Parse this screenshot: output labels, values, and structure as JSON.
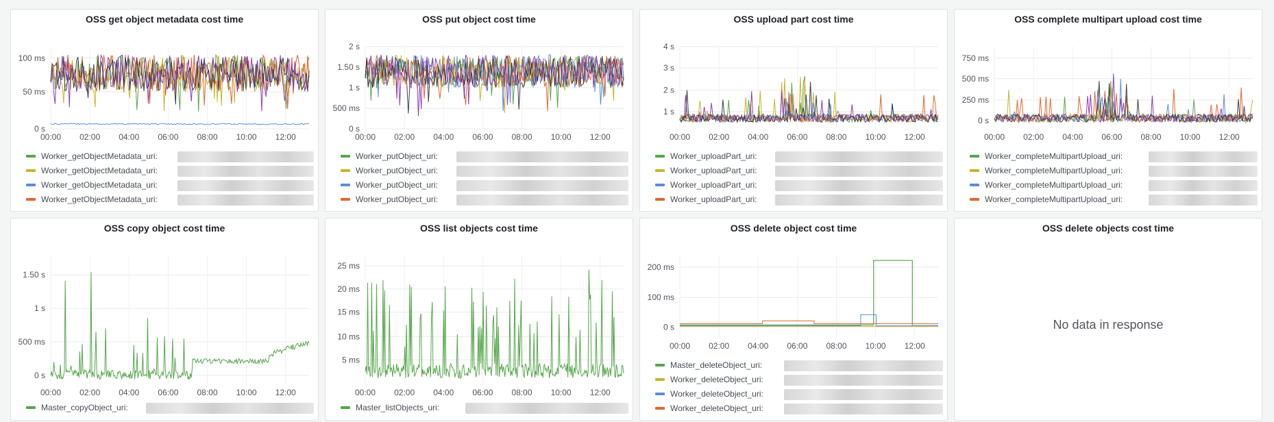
{
  "colors": {
    "green": "#56a64b",
    "yellow": "#c8b42a",
    "blue": "#5a8ed6",
    "orange": "#e0672e",
    "purple": "#8f3bb8",
    "dark": "#3a3f4a"
  },
  "panels": [
    {
      "title": "OSS get object metadata cost time",
      "yticks": [
        "100 ms",
        "50 ms",
        "0 s"
      ],
      "ymax": 120,
      "xticks": [
        "00:00",
        "02:00",
        "04:00",
        "06:00",
        "08:00",
        "10:00",
        "12:00"
      ],
      "legend": [
        "Worker_getObjectMetadata_uri:",
        "Worker_getObjectMetadata_uri:",
        "Worker_getObjectMetadata_uri:",
        "Worker_getObjectMetadata_uri:"
      ],
      "legend_colors": [
        "green",
        "yellow",
        "blue",
        "orange"
      ]
    },
    {
      "title": "OSS put object cost time",
      "yticks": [
        "2 s",
        "1.50 s",
        "1 s",
        "500 ms",
        "0 s"
      ],
      "ymax": 2,
      "xticks": [
        "00:00",
        "02:00",
        "04:00",
        "06:00",
        "08:00",
        "10:00",
        "12:00"
      ],
      "legend": [
        "Worker_putObject_uri:",
        "Worker_putObject_uri:",
        "Worker_putObject_uri:",
        "Worker_putObject_uri:"
      ],
      "legend_colors": [
        "green",
        "yellow",
        "blue",
        "orange"
      ]
    },
    {
      "title": "OSS upload part cost time",
      "yticks": [
        "4 s",
        "3 s",
        "2 s",
        "1 s"
      ],
      "ymax": 4,
      "xticks": [
        "00:00",
        "02:00",
        "04:00",
        "06:00",
        "08:00",
        "10:00",
        "12:00"
      ],
      "legend": [
        "Worker_uploadPart_uri:",
        "Worker_uploadPart_uri:",
        "Worker_uploadPart_uri:",
        "Worker_uploadPart_uri:"
      ],
      "legend_colors": [
        "green",
        "yellow",
        "blue",
        "orange"
      ]
    },
    {
      "title": "OSS complete multipart upload cost time",
      "yticks": [
        "750 ms",
        "500 ms",
        "250 ms",
        "0 s"
      ],
      "ymax": 900,
      "xticks": [
        "00:00",
        "02:00",
        "04:00",
        "06:00",
        "08:00",
        "10:00",
        "12:00"
      ],
      "legend": [
        "Worker_completeMultipartUpload_uri:",
        "Worker_completeMultipartUpload_uri:",
        "Worker_completeMultipartUpload_uri:",
        "Worker_completeMultipartUpload_uri:"
      ],
      "legend_colors": [
        "green",
        "yellow",
        "blue",
        "orange"
      ]
    },
    {
      "title": "OSS copy object cost time",
      "yticks": [
        "1.50 s",
        "1 s",
        "500 ms",
        "0 s"
      ],
      "ymax": 1.6,
      "xticks": [
        "00:00",
        "02:00",
        "04:00",
        "06:00",
        "08:00",
        "10:00",
        "12:00"
      ],
      "legend": [
        "Master_copyObject_uri:"
      ],
      "legend_colors": [
        "green"
      ]
    },
    {
      "title": "OSS list objects cost time",
      "yticks": [
        "25 ms",
        "20 ms",
        "15 ms",
        "10 ms",
        "5 ms"
      ],
      "ymax": 26,
      "xticks": [
        "00:00",
        "02:00",
        "04:00",
        "06:00",
        "08:00",
        "10:00",
        "12:00"
      ],
      "legend": [
        "Master_listObjects_uri:"
      ],
      "legend_colors": [
        "green"
      ]
    },
    {
      "title": "OSS delete object cost time",
      "yticks": [
        "200 ms",
        "100 ms",
        "0 s"
      ],
      "ymax": 230,
      "xticks": [
        "00:00",
        "02:00",
        "04:00",
        "06:00",
        "08:00",
        "10:00",
        "12:00"
      ],
      "legend": [
        "Master_deleteObject_uri:",
        "Worker_deleteObject_uri:",
        "Worker_deleteObject_uri:",
        "Worker_deleteObject_uri:"
      ],
      "legend_colors": [
        "green",
        "yellow",
        "blue",
        "orange"
      ]
    },
    {
      "title": "OSS delete objects cost time",
      "message": "No data in response"
    }
  ]
}
